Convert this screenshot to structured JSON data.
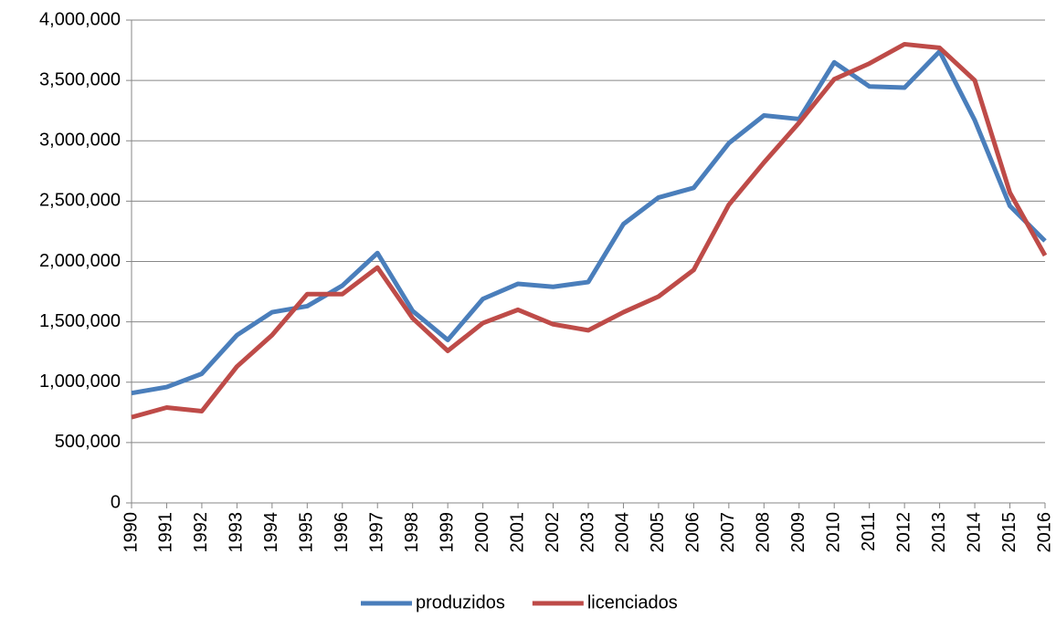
{
  "chart_data": {
    "type": "line",
    "x": [
      1990,
      1991,
      1992,
      1993,
      1994,
      1995,
      1996,
      1997,
      1998,
      1999,
      2000,
      2001,
      2002,
      2003,
      2004,
      2005,
      2006,
      2007,
      2008,
      2009,
      2010,
      2011,
      2012,
      2013,
      2014,
      2015,
      2016
    ],
    "xlim": [
      1990,
      2016
    ],
    "xticks": [
      1990,
      1991,
      1992,
      1993,
      1994,
      1995,
      1996,
      1997,
      1998,
      1999,
      2000,
      2001,
      2002,
      2003,
      2004,
      2005,
      2006,
      2007,
      2008,
      2009,
      2010,
      2011,
      2012,
      2013,
      2014,
      2015,
      2016
    ],
    "ylim": [
      0,
      4000000
    ],
    "yticks": [
      0,
      {
        "value": 500000,
        "label": "500,000"
      },
      {
        "value": 1000000,
        "label": "1,000,000"
      },
      {
        "value": 1500000,
        "label": "1,500,000"
      },
      {
        "value": 2000000,
        "label": "2,000,000"
      },
      {
        "value": 2500000,
        "label": "2,500,000"
      },
      {
        "value": 3000000,
        "label": "3,000,000"
      },
      {
        "value": 3500000,
        "label": "3,500,000"
      },
      {
        "value": 4000000,
        "label": "4,000,000"
      }
    ],
    "grid": true,
    "legend": "bottom",
    "series": [
      {
        "name": "produzidos",
        "color": "#4a7ebb",
        "values": [
          910000,
          960000,
          1070000,
          1390000,
          1580000,
          1630000,
          1800000,
          2070000,
          1590000,
          1350000,
          1690000,
          1815000,
          1790000,
          1830000,
          2310000,
          2530000,
          2610000,
          2980000,
          3210000,
          3180000,
          3650000,
          3450000,
          3440000,
          3740000,
          3170000,
          2460000,
          2170000
        ]
      },
      {
        "name": "licenciados",
        "color": "#be4b48",
        "values": [
          710000,
          790000,
          760000,
          1130000,
          1390000,
          1730000,
          1730000,
          1950000,
          1530000,
          1260000,
          1490000,
          1600000,
          1480000,
          1430000,
          1580000,
          1710000,
          1930000,
          2470000,
          2820000,
          3150000,
          3510000,
          3640000,
          3800000,
          3770000,
          3500000,
          2570000,
          2050000
        ]
      }
    ]
  }
}
